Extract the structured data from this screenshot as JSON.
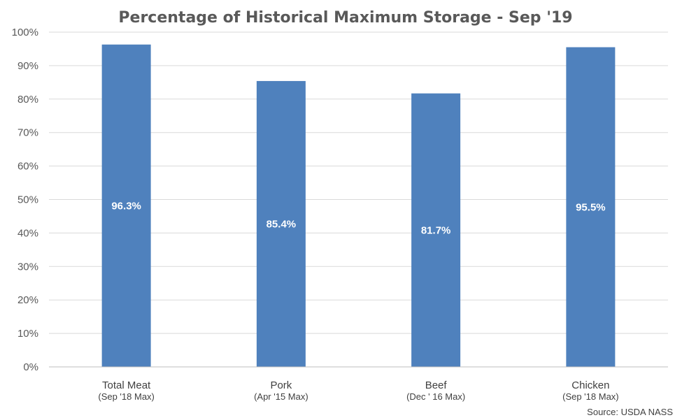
{
  "chart_data": {
    "type": "bar",
    "title": "Percentage of Historical Maximum Storage - Sep '19",
    "categories": [
      "Total Meat",
      "Pork",
      "Beef",
      "Chicken"
    ],
    "category_sublabels": [
      "(Sep '18 Max)",
      "(Apr '15 Max)",
      "(Dec ' 16 Max)",
      "(Sep '18 Max)"
    ],
    "values": [
      96.3,
      85.4,
      81.7,
      95.5
    ],
    "data_labels": [
      "96.3%",
      "85.4%",
      "81.7%",
      "95.5%"
    ],
    "ylim": [
      0,
      100
    ],
    "yticks": [
      0,
      10,
      20,
      30,
      40,
      50,
      60,
      70,
      80,
      90,
      100
    ],
    "ytick_labels": [
      "0%",
      "10%",
      "20%",
      "30%",
      "40%",
      "50%",
      "60%",
      "70%",
      "80%",
      "90%",
      "100%"
    ],
    "xlabel": "",
    "ylabel": "",
    "grid": true,
    "bar_color": "#4F81BD",
    "grid_color": "#D9D9D9",
    "source": "Source: USDA NASS"
  }
}
